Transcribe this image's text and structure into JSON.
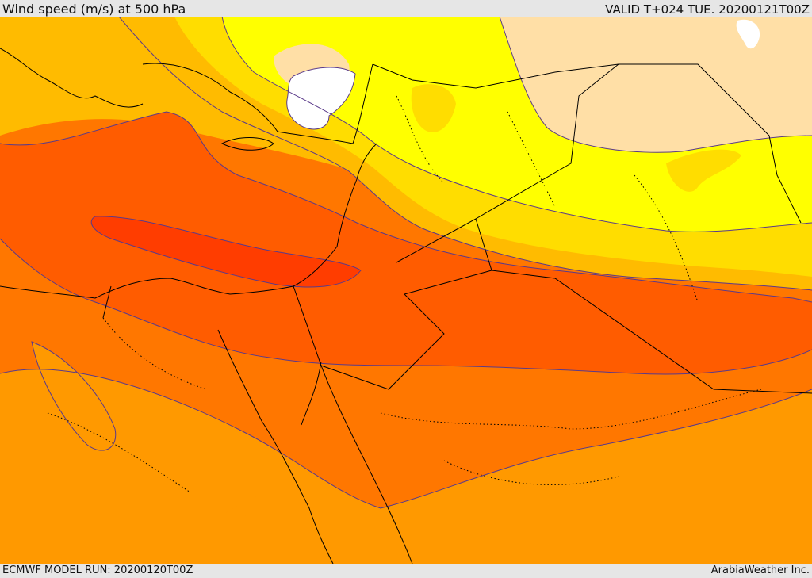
{
  "header": {
    "title": "Wind speed (m/s) at 500 hPa",
    "valid_time": "VALID T+024 TUE. 20200121T00Z"
  },
  "footer": {
    "model_run": "ECMWF MODEL RUN: 20200120T00Z",
    "credit": "ArabiaWeather Inc."
  },
  "colors": {
    "band_1": "#ffffff",
    "band_2": "#ffdfa6",
    "band_3": "#ffff00",
    "band_4": "#ffdd00",
    "band_5": "#ffbb00",
    "band_6": "#ff9900",
    "band_7": "#ff7700",
    "band_8": "#ff5c00",
    "band_9": "#ff3d00",
    "coastline": "#000000",
    "contour": "#5a3a8a"
  }
}
